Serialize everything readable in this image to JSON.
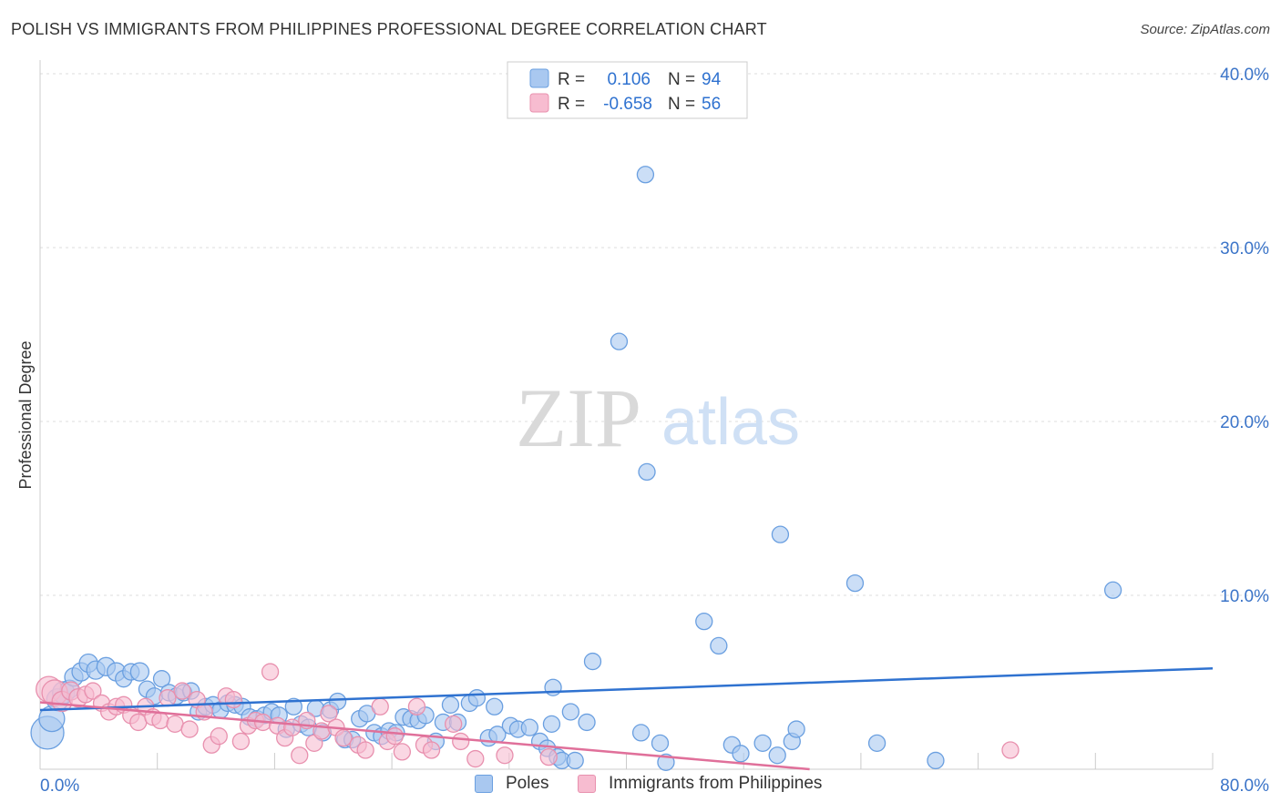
{
  "header": {
    "title": "POLISH VS IMMIGRANTS FROM PHILIPPINES PROFESSIONAL DEGREE CORRELATION CHART",
    "source": "Source: ZipAtlas.com"
  },
  "watermark": {
    "zip": "ZIP",
    "atlas": "atlas"
  },
  "colors": {
    "poles_fill": "#a9c8f0",
    "poles_stroke": "#6a9fe0",
    "poles_line": "#2f72d0",
    "phil_fill": "#f7bcd0",
    "phil_stroke": "#e890ae",
    "phil_line": "#e0709a",
    "axis_text": "#3b74c8",
    "grid": "#dddddd"
  },
  "legend_top": {
    "rows": [
      {
        "r_label": "R =",
        "r_value": "0.106",
        "n_label": "N =",
        "n_value": "94"
      },
      {
        "r_label": "R =",
        "r_value": "-0.658",
        "n_label": "N =",
        "n_value": "56"
      }
    ]
  },
  "chart_data": {
    "type": "scatter",
    "ylabel": "Professional Degree",
    "xlim": [
      0,
      80
    ],
    "ylim": [
      0,
      40
    ],
    "x_tick_labels": [
      "0.0%",
      "80.0%"
    ],
    "y_ticks": [
      10,
      20,
      30,
      40
    ],
    "y_tick_labels": [
      "10.0%",
      "20.0%",
      "30.0%",
      "40.0%"
    ],
    "grid": true,
    "legend_placement": "top-center",
    "series": [
      {
        "name": "Poles",
        "trend": {
          "x": [
            0,
            80
          ],
          "y": [
            3.4,
            5.8
          ]
        },
        "points": [
          [
            0.5,
            2.1,
            18
          ],
          [
            0.8,
            2.9,
            14
          ],
          [
            1.2,
            4.0,
            12
          ],
          [
            1.6,
            4.4,
            12
          ],
          [
            2.0,
            4.6,
            10
          ],
          [
            2.3,
            5.3,
            10
          ],
          [
            2.8,
            5.6,
            10
          ],
          [
            3.3,
            6.1,
            10
          ],
          [
            3.8,
            5.7,
            10
          ],
          [
            4.5,
            5.9,
            10
          ],
          [
            5.2,
            5.6,
            10
          ],
          [
            5.7,
            5.2,
            9
          ],
          [
            6.2,
            5.6,
            9
          ],
          [
            6.8,
            5.6,
            10
          ],
          [
            7.3,
            4.6,
            9
          ],
          [
            7.8,
            4.2,
            9
          ],
          [
            8.3,
            5.2,
            9
          ],
          [
            8.8,
            4.4,
            9
          ],
          [
            9.3,
            4.2,
            9
          ],
          [
            9.8,
            4.4,
            9
          ],
          [
            10.3,
            4.5,
            9
          ],
          [
            10.8,
            3.3,
            9
          ],
          [
            11.3,
            3.6,
            9
          ],
          [
            11.8,
            3.7,
            9
          ],
          [
            12.3,
            3.4,
            9
          ],
          [
            12.8,
            3.8,
            9
          ],
          [
            13.3,
            3.7,
            9
          ],
          [
            13.8,
            3.6,
            9
          ],
          [
            14.3,
            3.0,
            9
          ],
          [
            14.8,
            2.9,
            9
          ],
          [
            15.3,
            3.1,
            9
          ],
          [
            15.8,
            3.3,
            9
          ],
          [
            16.3,
            3.1,
            9
          ],
          [
            16.8,
            2.3,
            9
          ],
          [
            17.3,
            3.6,
            9
          ],
          [
            17.8,
            2.6,
            9
          ],
          [
            18.3,
            2.4,
            9
          ],
          [
            18.8,
            3.5,
            9
          ],
          [
            19.3,
            2.1,
            9
          ],
          [
            19.8,
            3.4,
            9
          ],
          [
            20.3,
            3.9,
            9
          ],
          [
            20.8,
            1.7,
            9
          ],
          [
            21.3,
            1.7,
            9
          ],
          [
            21.8,
            2.9,
            9
          ],
          [
            22.3,
            3.2,
            9
          ],
          [
            22.8,
            2.1,
            9
          ],
          [
            23.3,
            1.9,
            9
          ],
          [
            23.8,
            2.2,
            9
          ],
          [
            24.3,
            2.1,
            9
          ],
          [
            24.8,
            3.0,
            9
          ],
          [
            25.3,
            2.9,
            9
          ],
          [
            25.8,
            2.8,
            9
          ],
          [
            26.3,
            3.1,
            9
          ],
          [
            27.0,
            1.6,
            9
          ],
          [
            27.5,
            2.7,
            9
          ],
          [
            28.0,
            3.7,
            9
          ],
          [
            28.5,
            2.7,
            9
          ],
          [
            29.3,
            3.8,
            9
          ],
          [
            29.8,
            4.1,
            9
          ],
          [
            30.6,
            1.8,
            9
          ],
          [
            31.2,
            2.0,
            9
          ],
          [
            31.0,
            3.6,
            9
          ],
          [
            32.1,
            2.5,
            9
          ],
          [
            32.6,
            2.3,
            9
          ],
          [
            33.4,
            2.4,
            9
          ],
          [
            34.1,
            1.6,
            9
          ],
          [
            34.6,
            1.2,
            9
          ],
          [
            34.9,
            2.6,
            9
          ],
          [
            35.0,
            4.7,
            9
          ],
          [
            35.3,
            0.7,
            9
          ],
          [
            35.6,
            0.5,
            9
          ],
          [
            36.5,
            0.5,
            9
          ],
          [
            36.2,
            3.3,
            9
          ],
          [
            37.3,
            2.7,
            9
          ],
          [
            37.7,
            6.2,
            9
          ],
          [
            39.5,
            24.6,
            9
          ],
          [
            41.4,
            17.1,
            9
          ],
          [
            41.3,
            34.2,
            9
          ],
          [
            41.0,
            2.1,
            9
          ],
          [
            42.3,
            1.5,
            9
          ],
          [
            42.7,
            0.4,
            9
          ],
          [
            45.3,
            8.5,
            9
          ],
          [
            46.3,
            7.1,
            9
          ],
          [
            47.2,
            1.4,
            9
          ],
          [
            47.8,
            0.9,
            9
          ],
          [
            49.3,
            1.5,
            9
          ],
          [
            50.3,
            0.8,
            9
          ],
          [
            50.5,
            13.5,
            9
          ],
          [
            51.3,
            1.6,
            9
          ],
          [
            51.6,
            2.3,
            9
          ],
          [
            55.6,
            10.7,
            9
          ],
          [
            57.1,
            1.5,
            9
          ],
          [
            61.1,
            0.5,
            9
          ],
          [
            73.2,
            10.3,
            9
          ]
        ]
      },
      {
        "name": "Immigrants from Philippines",
        "trend": {
          "x": [
            0,
            52.5
          ],
          "y": [
            3.85,
            0.0
          ]
        },
        "points": [
          [
            0.6,
            4.6,
            14
          ],
          [
            1.0,
            4.4,
            14
          ],
          [
            1.5,
            3.9,
            11
          ],
          [
            2.1,
            4.5,
            10
          ],
          [
            2.6,
            4.1,
            10
          ],
          [
            3.1,
            4.3,
            9
          ],
          [
            3.6,
            4.5,
            9
          ],
          [
            4.2,
            3.8,
            9
          ],
          [
            4.7,
            3.3,
            9
          ],
          [
            5.2,
            3.6,
            9
          ],
          [
            5.7,
            3.7,
            9
          ],
          [
            6.2,
            3.1,
            9
          ],
          [
            6.7,
            2.7,
            9
          ],
          [
            7.2,
            3.6,
            9
          ],
          [
            7.7,
            3.0,
            9
          ],
          [
            8.2,
            2.8,
            9
          ],
          [
            8.7,
            4.1,
            9
          ],
          [
            9.2,
            2.6,
            9
          ],
          [
            9.7,
            4.5,
            9
          ],
          [
            10.2,
            2.3,
            9
          ],
          [
            10.7,
            4.0,
            9
          ],
          [
            11.2,
            3.3,
            9
          ],
          [
            11.7,
            1.4,
            9
          ],
          [
            12.2,
            1.9,
            9
          ],
          [
            12.7,
            4.2,
            9
          ],
          [
            13.2,
            4.0,
            9
          ],
          [
            13.7,
            1.6,
            9
          ],
          [
            14.2,
            2.5,
            9
          ],
          [
            14.7,
            2.8,
            9
          ],
          [
            15.2,
            2.7,
            9
          ],
          [
            15.7,
            5.6,
            9
          ],
          [
            16.2,
            2.5,
            9
          ],
          [
            16.7,
            1.8,
            9
          ],
          [
            17.2,
            2.4,
            9
          ],
          [
            17.7,
            0.8,
            9
          ],
          [
            18.2,
            2.8,
            9
          ],
          [
            18.7,
            1.5,
            9
          ],
          [
            19.2,
            2.2,
            9
          ],
          [
            19.7,
            3.2,
            9
          ],
          [
            20.2,
            2.4,
            9
          ],
          [
            20.7,
            1.8,
            9
          ],
          [
            21.7,
            1.4,
            9
          ],
          [
            22.2,
            1.1,
            9
          ],
          [
            23.2,
            3.6,
            9
          ],
          [
            23.7,
            1.6,
            9
          ],
          [
            24.2,
            1.9,
            9
          ],
          [
            24.7,
            1.0,
            9
          ],
          [
            25.7,
            3.6,
            9
          ],
          [
            26.2,
            1.4,
            9
          ],
          [
            26.7,
            1.1,
            9
          ],
          [
            28.2,
            2.6,
            9
          ],
          [
            28.7,
            1.6,
            9
          ],
          [
            29.7,
            0.6,
            9
          ],
          [
            31.7,
            0.8,
            9
          ],
          [
            34.7,
            0.7,
            9
          ],
          [
            66.2,
            1.1,
            9
          ]
        ]
      }
    ]
  }
}
